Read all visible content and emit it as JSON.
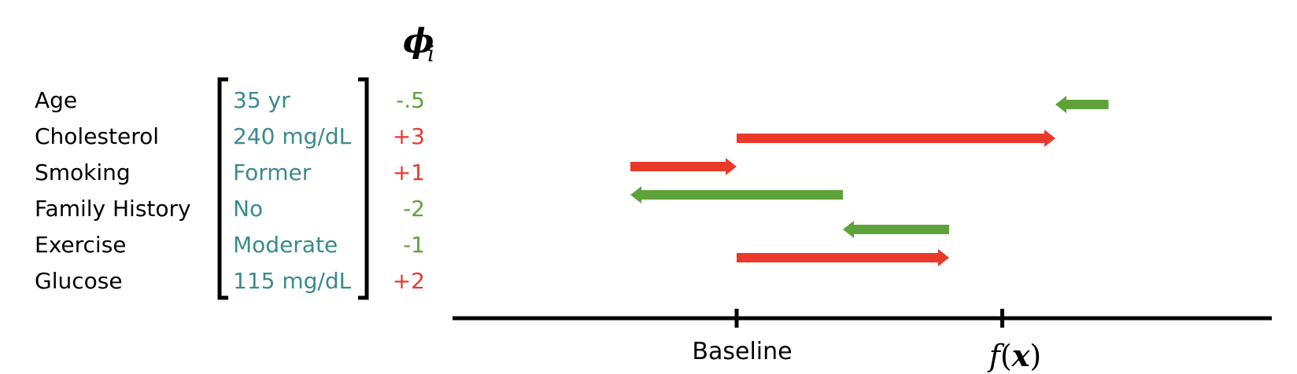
{
  "header": {
    "symbol": "ϕ",
    "subscript": "i"
  },
  "colors": {
    "value_teal": "#3a8a8c",
    "positive_red": "#e8392a",
    "negative_green": "#5ea33a",
    "axis_black": "#000000"
  },
  "features": [
    {
      "name": "Age",
      "value": "35 yr",
      "phi_label": "-.5",
      "phi": -0.5,
      "sign": "negative"
    },
    {
      "name": "Cholesterol",
      "value": "240 mg/dL",
      "phi_label": "+3",
      "phi": 3,
      "sign": "positive"
    },
    {
      "name": "Smoking",
      "value": "Former",
      "phi_label": "+1",
      "phi": 1,
      "sign": "positive"
    },
    {
      "name": "Family History",
      "value": "No",
      "phi_label": "-2",
      "phi": -2,
      "sign": "negative"
    },
    {
      "name": "Exercise",
      "value": "Moderate",
      "phi_label": "-1",
      "phi": -1,
      "sign": "negative"
    },
    {
      "name": "Glucose",
      "value": "115 mg/dL",
      "phi_label": "+2",
      "phi": 2,
      "sign": "positive"
    }
  ],
  "arrows": [
    {
      "feature": "Age",
      "from": 3.5,
      "to": 3.0
    },
    {
      "feature": "Cholesterol",
      "from": 0.0,
      "to": 3.0
    },
    {
      "feature": "Smoking",
      "from": -1.0,
      "to": 0.0
    },
    {
      "feature": "Family History",
      "from": 1.0,
      "to": -1.0
    },
    {
      "feature": "Exercise",
      "from": 2.0,
      "to": 1.0
    },
    {
      "feature": "Glucose",
      "from": 0.0,
      "to": 2.0
    }
  ],
  "axis": {
    "baseline_label": "Baseline",
    "baseline_value": 0,
    "fx_label": "f(x)",
    "fx_value": 2.5
  }
}
